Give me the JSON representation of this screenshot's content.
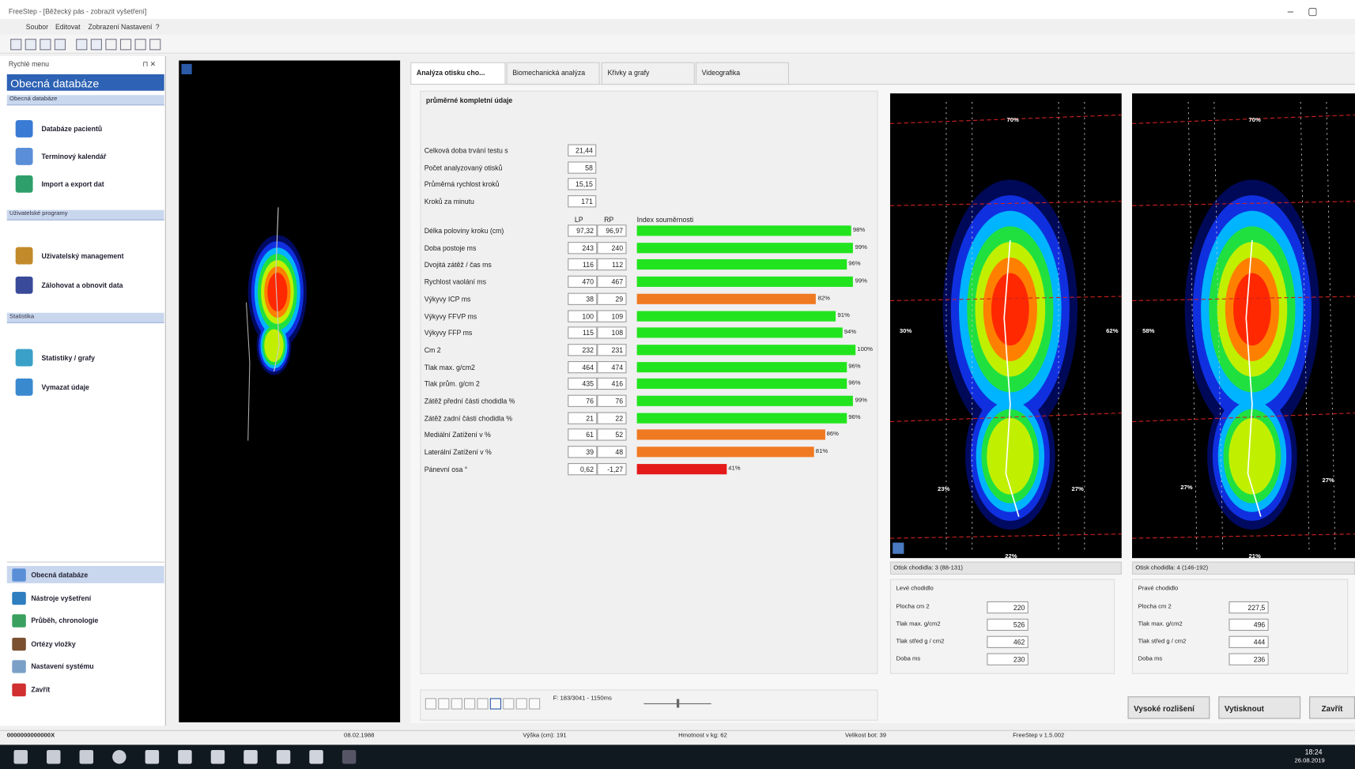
{
  "window": {
    "title": "FreeStep - [Běžecký pás - zobrazit vyšetření]",
    "menu": [
      "Soubor",
      "Editovat",
      "Zobrazení",
      "Nastavení",
      "?"
    ]
  },
  "sidebar": {
    "title": "Rychlé menu",
    "header": "Obecná databáze",
    "groups": [
      {
        "title": "Obecná databáze",
        "items": [
          "Databáze pacientů",
          "Terminový kalendář",
          "Import a export dat"
        ]
      },
      {
        "title": "Uživatelské programy",
        "items": [
          "Uživatelský management",
          "Zálohovat a obnovit data"
        ]
      },
      {
        "title": "Statistika",
        "items": [
          "Statistiky / grafy",
          "Vymazat údaje"
        ]
      }
    ],
    "nav": [
      "Obecná databáze",
      "Nástroje vyšetření",
      "Průběh, chronologie",
      "Ortézy vložky",
      "Nastavení systému",
      "Zavřít"
    ]
  },
  "tabs": [
    "Analýza otisku cho...",
    "Biomechanická analýza",
    "Křivky a grafy",
    "Videografika"
  ],
  "summary": {
    "title": "průměrné kompletní údaje",
    "general": [
      {
        "label": "Celková doba trvání testu s",
        "value": "21,44"
      },
      {
        "label": "Počet analyzovaný otisků",
        "value": "58"
      },
      {
        "label": "Průměrná rychlost kroků",
        "value": "15,15"
      },
      {
        "label": "Kroků za minutu",
        "value": "171"
      }
    ],
    "columns": [
      "LP",
      "RP",
      "Index souměrnosti"
    ],
    "rows": [
      {
        "label": "Délka poloviny kroku (cm)",
        "lp": "97,32",
        "rp": "96,97",
        "symmetry": 98,
        "symmetry_label": "98%",
        "color": "#22e41e"
      },
      {
        "label": "Doba postoje ms",
        "lp": "243",
        "rp": "240",
        "symmetry": 99,
        "symmetry_label": "99%",
        "color": "#22e41e"
      },
      {
        "label": "Dvojitá zátěž / čas ms",
        "lp": "116",
        "rp": "112",
        "symmetry": 96,
        "symmetry_label": "96%",
        "color": "#22e41e"
      },
      {
        "label": "Rychlost vaolání ms",
        "lp": "470",
        "rp": "467",
        "symmetry": 99,
        "symmetry_label": "99%",
        "color": "#22e41e"
      },
      {
        "label": "Výkyvy ICP ms",
        "lp": "38",
        "rp": "29",
        "symmetry": 82,
        "symmetry_label": "82%",
        "color": "#f07a22"
      },
      {
        "label": "Výkyvy FFVP ms",
        "lp": "100",
        "rp": "109",
        "symmetry": 91,
        "symmetry_label": "91%",
        "color": "#22e41e"
      },
      {
        "label": "Výkyvy FFP ms",
        "lp": "115",
        "rp": "108",
        "symmetry": 94,
        "symmetry_label": "94%",
        "color": "#22e41e"
      },
      {
        "label": "Cm 2",
        "lp": "232",
        "rp": "231",
        "symmetry": 100,
        "symmetry_label": "100%",
        "color": "#22e41e"
      },
      {
        "label": "Tlak max. g/cm2",
        "lp": "464",
        "rp": "474",
        "symmetry": 96,
        "symmetry_label": "96%",
        "color": "#22e41e"
      },
      {
        "label": "Tlak prům. g/cm 2",
        "lp": "435",
        "rp": "416",
        "symmetry": 96,
        "symmetry_label": "96%",
        "color": "#22e41e"
      },
      {
        "label": "Zátěž přední části chodidla %",
        "lp": "76",
        "rp": "76",
        "symmetry": 99,
        "symmetry_label": "99%",
        "color": "#22e41e"
      },
      {
        "label": "Zátěž zadní části chodidla %",
        "lp": "21",
        "rp": "22",
        "symmetry": 96,
        "symmetry_label": "96%",
        "color": "#22e41e"
      },
      {
        "label": "Mediální Zatížení v %",
        "lp": "61",
        "rp": "52",
        "symmetry": 86,
        "symmetry_label": "86%",
        "color": "#f07a22"
      },
      {
        "label": "Laterální Zatížení v %",
        "lp": "39",
        "rp": "48",
        "symmetry": 81,
        "symmetry_label": "81%",
        "color": "#f07a22"
      },
      {
        "label": "Pánevní osa °",
        "lp": "0,62",
        "rp": "-1,27",
        "symmetry": 41,
        "symmetry_label": "41%",
        "color": "#e41a1a"
      }
    ]
  },
  "footprints": [
    {
      "caption": "Otisk chodidla: 3 (88-131)",
      "side": "Levé chodidlo",
      "marks": [
        "70%",
        "30%",
        "62%",
        "23%",
        "27%",
        "22%"
      ],
      "fields": [
        {
          "label": "Plocha cm 2",
          "value": "220"
        },
        {
          "label": "Tlak max. g/cm2",
          "value": "526"
        },
        {
          "label": "Tlak střed g / cm2",
          "value": "462"
        },
        {
          "label": "Doba ms",
          "value": "230"
        }
      ]
    },
    {
      "caption": "Otisk chodidla: 4 (146-192)",
      "side": "Pravé chodidlo",
      "marks": [
        "70%",
        "58%",
        "27%",
        "27%",
        "21%"
      ],
      "fields": [
        {
          "label": "Plocha cm 2",
          "value": "227,5"
        },
        {
          "label": "Tlak max. g/cm2",
          "value": "496"
        },
        {
          "label": "Tlak střed g / cm2",
          "value": "444"
        },
        {
          "label": "Doba ms",
          "value": "236"
        }
      ]
    }
  ],
  "playback": "F: 183/3041 - 1150ms",
  "buttons": [
    "Vysoké rozlišení",
    "Vytisknout",
    "Zavřít"
  ],
  "status": [
    "0000000000000X",
    "08.02.1988",
    "Výška (cm): 191",
    "Hmotnost v kg: 62",
    "Velikost bot: 39",
    "FreeStep v 1.5.002"
  ],
  "clock": {
    "time": "18:24",
    "date": "26.08.2019"
  }
}
